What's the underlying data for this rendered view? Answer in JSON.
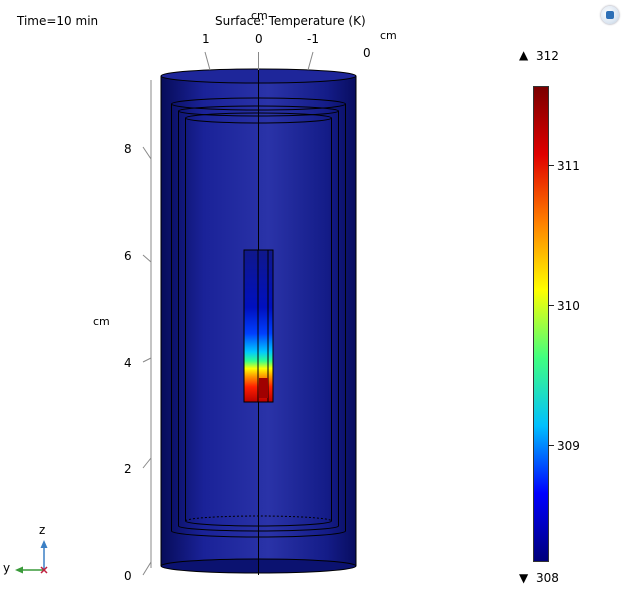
{
  "plot": {
    "time_label": "Time=10 min",
    "title": "Surface: Temperature (K)",
    "axis_unit_top": "cm",
    "axis_unit_right": "cm",
    "axis_unit_left": "cm",
    "top_ticks": [
      "1",
      "0",
      "-1",
      "0"
    ],
    "z_ticks": [
      "8",
      "6",
      "4",
      "2",
      "0"
    ]
  },
  "colorbar": {
    "max_label": "312",
    "min_label": "308",
    "max_marker": "▲",
    "min_marker": "▼",
    "ticks": [
      "311",
      "310",
      "309"
    ],
    "colormap": [
      "#00007a",
      "#0000ff",
      "#00c0ff",
      "#40ff80",
      "#ffff00",
      "#ff8000",
      "#e00000",
      "#7a0000"
    ]
  },
  "triad": {
    "z": "z",
    "y": "y"
  },
  "colors": {
    "outer_cylinder": "#121a8a",
    "outer_cylinder_dark": "#070c5a",
    "outer_cylinder_light": "#2a33a8",
    "outline": "#000000"
  },
  "toolbar_icon": "comsol-logo-icon"
}
